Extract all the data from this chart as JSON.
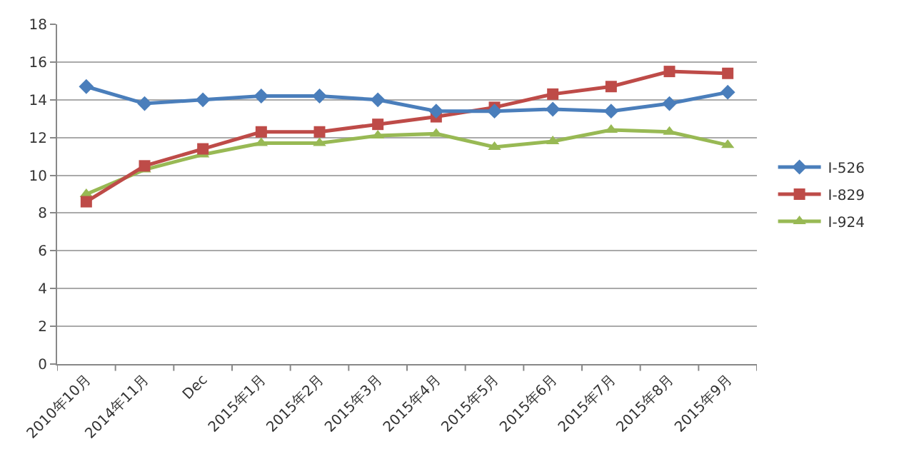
{
  "chart_data": {
    "type": "line",
    "categories": [
      "2010年10月",
      "2014年11月",
      "Dec",
      "2015年1月",
      "2015年2月",
      "2015年3月",
      "2015年4月",
      "2015年5月",
      "2015年6月",
      "2015年7月",
      "2015年8月",
      "2015年9月"
    ],
    "series": [
      {
        "name": "I-526",
        "color": "#4a7ebb",
        "marker": "diamond",
        "values": [
          14.7,
          13.8,
          14.0,
          14.2,
          14.2,
          14.0,
          13.4,
          13.4,
          13.5,
          13.4,
          13.8,
          14.4
        ]
      },
      {
        "name": "I-829",
        "color": "#be4b48",
        "marker": "square",
        "values": [
          8.6,
          10.5,
          11.4,
          12.3,
          12.3,
          12.7,
          13.1,
          13.6,
          14.3,
          14.7,
          15.5,
          15.4
        ]
      },
      {
        "name": "I-924",
        "color": "#98b954",
        "marker": "triangle",
        "values": [
          9.0,
          10.3,
          11.1,
          11.7,
          11.7,
          12.1,
          12.2,
          11.5,
          11.8,
          12.4,
          12.3,
          11.6
        ]
      }
    ],
    "ylim": [
      0,
      18
    ],
    "yticks": [
      0,
      2,
      4,
      6,
      8,
      10,
      12,
      14,
      16,
      18
    ],
    "grid": "y",
    "legend": "right",
    "line_style": "solid"
  }
}
